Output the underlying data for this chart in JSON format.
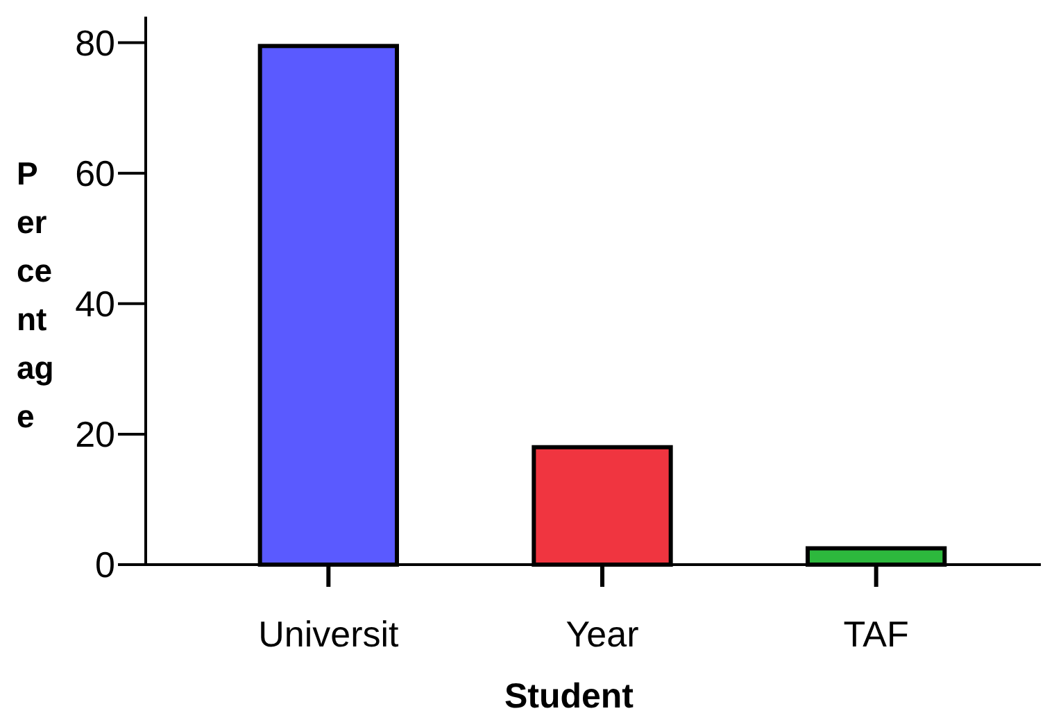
{
  "chart_data": {
    "type": "bar",
    "xlabel": "Student",
    "ylabel": "Percentage",
    "categories": [
      "Universit",
      "Year",
      "TAF"
    ],
    "values": [
      79.5,
      18,
      2.5
    ],
    "colors": [
      "#5a5aff",
      "#f03540",
      "#2db83d"
    ],
    "ylim": [
      0,
      84
    ],
    "yticks": [
      0,
      20,
      40,
      60,
      80
    ],
    "grid": false
  }
}
